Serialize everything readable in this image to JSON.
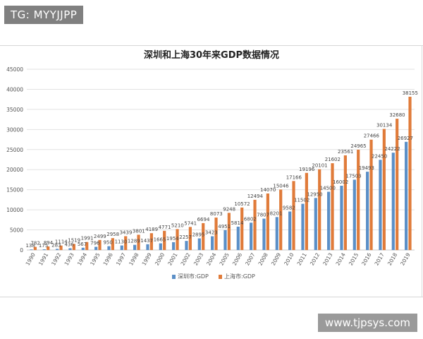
{
  "watermark_top": "TG: MYYJJPP",
  "watermark_bottom": "www.tjpsys.com",
  "colors": {
    "shenzhen": "#5B8FC7",
    "shanghai": "#E07B3A",
    "grid": "#e2e2e2",
    "text": "#555555"
  },
  "chart_data": {
    "type": "bar",
    "title": "深圳和上海30年来GDP数据情况",
    "xlabel": "",
    "ylabel": "",
    "ylim": [
      0,
      45000
    ],
    "yticks": [
      0,
      5000,
      10000,
      15000,
      20000,
      25000,
      30000,
      35000,
      40000,
      45000
    ],
    "grid": true,
    "legend_position": "bottom",
    "categories": [
      "1990",
      "1991",
      "1992",
      "1993",
      "1994",
      "1995",
      "1996",
      "1997",
      "1998",
      "1999",
      "2000",
      "2001",
      "2002",
      "2003",
      "2004",
      "2005",
      "2006",
      "2007",
      "2008",
      "2009",
      "2010",
      "2011",
      "2012",
      "2013",
      "2014",
      "2015",
      "2016",
      "2017",
      "2018",
      "2019"
    ],
    "series": [
      {
        "name": "深圳市:GDP",
        "values": [
          138,
          175,
          283,
          436,
          567,
          796,
          950,
          1130,
          1289,
          1437,
          1665,
          1954,
          2257,
          2895,
          3423,
          4951,
          5814,
          6802,
          7807,
          8201,
          9582,
          11502,
          12950,
          14500,
          16002,
          17503,
          19493,
          22450,
          24222,
          26927
        ]
      },
      {
        "name": "上海市:GDP",
        "values": [
          782,
          894,
          1114,
          1519,
          1991,
          2499,
          2958,
          3439,
          3801,
          4189,
          4771,
          5210,
          5741,
          6694,
          8073,
          9248,
          10572,
          12494,
          14070,
          15046,
          17166,
          19196,
          20101,
          21602,
          23561,
          24965,
          27466,
          30134,
          32680,
          38155
        ]
      }
    ]
  }
}
